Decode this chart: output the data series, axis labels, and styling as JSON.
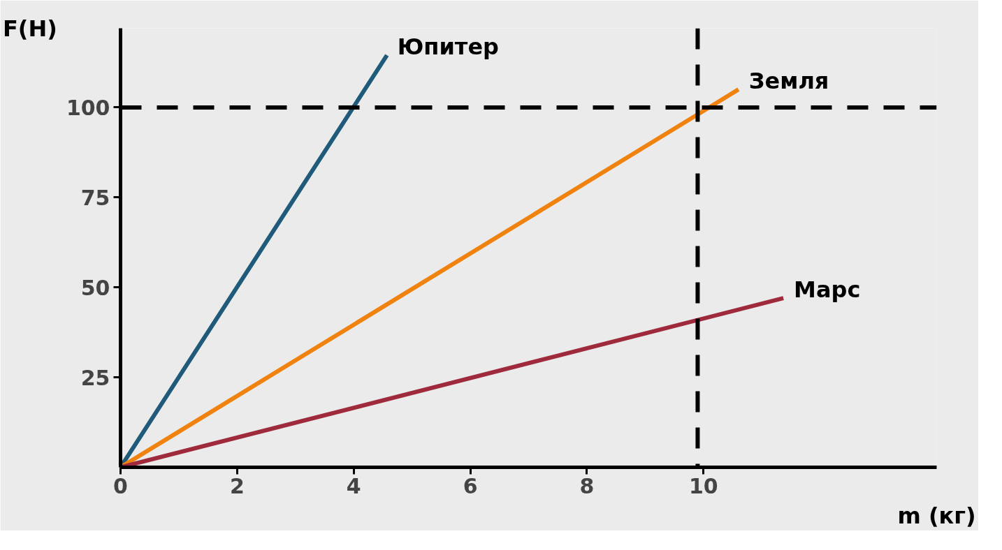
{
  "chart_data": {
    "type": "line",
    "xlabel": "m (кг)",
    "ylabel": "F(H)",
    "series": [
      {
        "name": "Юпитер",
        "color": "#1f5a7a",
        "x": [
          0,
          4.57
        ],
        "values": [
          0,
          114.5
        ]
      },
      {
        "name": "Земля",
        "color": "#f0820f",
        "x": [
          0,
          10.6
        ],
        "values": [
          0,
          105
        ]
      },
      {
        "name": "Марс",
        "color": "#9e2a3c",
        "x": [
          0,
          11.37
        ],
        "values": [
          0,
          47
        ]
      }
    ],
    "xlim": [
      0,
      14
    ],
    "ylim": [
      0,
      122
    ],
    "xticks": [
      0,
      2,
      4,
      6,
      8,
      10
    ],
    "yticks": [
      25,
      50,
      75,
      100
    ],
    "ref_lines": [
      {
        "axis": "y",
        "value": 100,
        "label": null,
        "color": "#000000",
        "line_style": "dashed"
      },
      {
        "axis": "x",
        "value": 9.9,
        "label": null,
        "color": "#000000",
        "line_style": "dashed"
      }
    ],
    "grid": false,
    "marker": "none",
    "line_style": "solid"
  }
}
